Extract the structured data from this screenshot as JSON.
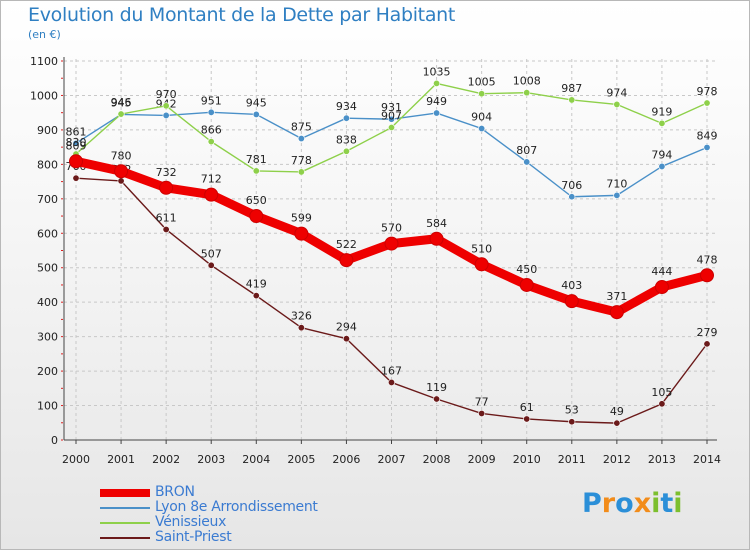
{
  "title": "Evolution du Montant de la Dette par Habitant",
  "subtitle": "(en €)",
  "logo": {
    "letters": [
      "P",
      "r",
      "o",
      "x",
      "i",
      "t",
      "i"
    ],
    "colors": [
      "#2b8fd8",
      "#f28c1a",
      "#2b8fd8",
      "#f28c1a",
      "#7cbf2e",
      "#2b8fd8",
      "#7cbf2e"
    ]
  },
  "chart_data": {
    "type": "line",
    "x": [
      "2000",
      "2001",
      "2002",
      "2003",
      "2004",
      "2005",
      "2006",
      "2007",
      "2008",
      "2009",
      "2010",
      "2011",
      "2012",
      "2013",
      "2014"
    ],
    "ylim": [
      0,
      1100
    ],
    "yticks": [
      0,
      100,
      200,
      300,
      400,
      500,
      600,
      700,
      800,
      900,
      1000,
      1100
    ],
    "grid": true,
    "legend_position": "bottom-left",
    "series": [
      {
        "name": "BRON",
        "color": "#ee0000",
        "emphasis": true,
        "values": [
          809,
          780,
          732,
          712,
          650,
          599,
          522,
          570,
          584,
          510,
          450,
          403,
          371,
          444,
          478
        ]
      },
      {
        "name": "Lyon 8e  Arrondissement",
        "color": "#4a90c8",
        "emphasis": false,
        "values": [
          861,
          945,
          942,
          951,
          945,
          875,
          934,
          931,
          949,
          904,
          807,
          706,
          710,
          794,
          849
        ]
      },
      {
        "name": "Vénissieux",
        "color": "#8ed04a",
        "emphasis": false,
        "values": [
          830,
          946,
          970,
          866,
          781,
          778,
          838,
          907,
          1035,
          1005,
          1008,
          987,
          974,
          919,
          978
        ]
      },
      {
        "name": "Saint-Priest",
        "color": "#6b1a1a",
        "emphasis": false,
        "values": [
          760,
          752,
          611,
          507,
          419,
          326,
          294,
          167,
          119,
          77,
          61,
          53,
          49,
          105,
          279
        ]
      }
    ]
  }
}
